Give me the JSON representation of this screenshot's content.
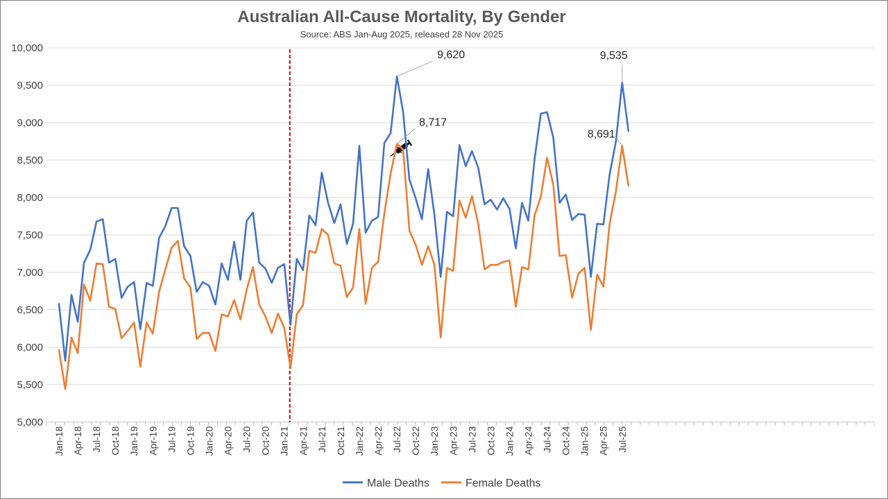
{
  "chart_data": {
    "type": "line",
    "title": "Australian All-Cause Mortality, By Gender",
    "subtitle": "Source: ABS Jan-Aug 2025, released 28 Nov 2025",
    "xlabel": "",
    "ylabel": "",
    "ylim": [
      5000,
      10000
    ],
    "ytick_values": [
      5000,
      5500,
      6000,
      6500,
      7000,
      7500,
      8000,
      8500,
      9000,
      9500,
      10000
    ],
    "ytick_labels": [
      "5,000",
      "5,500",
      "6,000",
      "6,500",
      "7,000",
      "7,500",
      "8,000",
      "8,500",
      "9,000",
      "9,500",
      "10,000"
    ],
    "grid": true,
    "legend_position": "bottom",
    "x_tick_labels": [
      {
        "index": 0,
        "label": "Jan-18"
      },
      {
        "index": 3,
        "label": "Apr-18"
      },
      {
        "index": 6,
        "label": "Jul-18"
      },
      {
        "index": 9,
        "label": "Oct-18"
      },
      {
        "index": 12,
        "label": "Jan-19"
      },
      {
        "index": 15,
        "label": "Apr-19"
      },
      {
        "index": 18,
        "label": "Jul-19"
      },
      {
        "index": 21,
        "label": "Oct-19"
      },
      {
        "index": 24,
        "label": "Jan-20"
      },
      {
        "index": 27,
        "label": "Apr-20"
      },
      {
        "index": 30,
        "label": "Jul-20"
      },
      {
        "index": 33,
        "label": "Oct-20"
      },
      {
        "index": 36,
        "label": "Jan-21"
      },
      {
        "index": 39,
        "label": "Apr-21"
      },
      {
        "index": 42,
        "label": "Jul-21"
      },
      {
        "index": 45,
        "label": "Oct-21"
      },
      {
        "index": 48,
        "label": "Jan-22"
      },
      {
        "index": 51,
        "label": "Apr-22"
      },
      {
        "index": 54,
        "label": "Jul-22"
      },
      {
        "index": 57,
        "label": "Oct-22"
      },
      {
        "index": 60,
        "label": "Jan-23"
      },
      {
        "index": 63,
        "label": "Apr-23"
      },
      {
        "index": 66,
        "label": "Jul-23"
      },
      {
        "index": 69,
        "label": "Oct-23"
      },
      {
        "index": 72,
        "label": "Jan-24"
      },
      {
        "index": 75,
        "label": "Apr-24"
      },
      {
        "index": 78,
        "label": "Jul-24"
      },
      {
        "index": 81,
        "label": "Oct-24"
      },
      {
        "index": 84,
        "label": "Jan-25"
      },
      {
        "index": 87,
        "label": "Apr-25"
      },
      {
        "index": 90,
        "label": "Jul-25"
      }
    ],
    "series": [
      {
        "name": "Male Deaths",
        "color": "#4472C4",
        "values": [
          6580,
          5820,
          6700,
          6340,
          7130,
          7300,
          7680,
          7710,
          7130,
          7180,
          6660,
          6810,
          6870,
          6240,
          6860,
          6820,
          7460,
          7620,
          7860,
          7860,
          7350,
          7220,
          6740,
          6870,
          6820,
          6570,
          7120,
          6900,
          7410,
          6900,
          7690,
          7800,
          7130,
          7050,
          6860,
          7060,
          7110,
          6300,
          7180,
          7030,
          7760,
          7630,
          8330,
          7930,
          7660,
          7910,
          7380,
          7650,
          8690,
          7530,
          7690,
          7740,
          8730,
          8860,
          9620,
          9140,
          8240,
          7990,
          7710,
          8380,
          7770,
          6940,
          7810,
          7750,
          8700,
          8420,
          8620,
          8400,
          7910,
          7970,
          7840,
          7990,
          7850,
          7320,
          7930,
          7690,
          8510,
          9120,
          9140,
          8800,
          7930,
          8040,
          7700,
          7780,
          7770,
          6940,
          7650,
          7640,
          8310,
          8750,
          9535,
          8890
        ]
      },
      {
        "name": "Female Deaths",
        "color": "#ED7D31",
        "values": [
          5960,
          5440,
          6130,
          5920,
          6840,
          6620,
          7120,
          7110,
          6540,
          6510,
          6120,
          6220,
          6330,
          5740,
          6330,
          6180,
          6740,
          7040,
          7330,
          7420,
          6920,
          6800,
          6110,
          6190,
          6190,
          5950,
          6440,
          6410,
          6630,
          6370,
          6770,
          7070,
          6570,
          6410,
          6190,
          6450,
          6260,
          5720,
          6440,
          6560,
          7290,
          7260,
          7580,
          7500,
          7120,
          7090,
          6670,
          6800,
          7580,
          6580,
          7060,
          7140,
          7790,
          8320,
          8717,
          8640,
          7560,
          7370,
          7100,
          7350,
          7100,
          6130,
          7060,
          7020,
          7960,
          7730,
          8020,
          7650,
          7040,
          7100,
          7100,
          7140,
          7160,
          6540,
          7070,
          7040,
          7760,
          8010,
          8530,
          8170,
          7220,
          7230,
          6660,
          6980,
          7060,
          6230,
          6970,
          6810,
          7650,
          8080,
          8691,
          8160
        ]
      }
    ],
    "annotations": [
      {
        "series": 0,
        "index": 54,
        "label": "9,620"
      },
      {
        "series": 1,
        "index": 54,
        "label": "8,717"
      },
      {
        "series": 0,
        "index": 90,
        "label": "9,535"
      },
      {
        "series": 1,
        "index": 90,
        "label": "8,691"
      }
    ],
    "vertical_marker": {
      "index": 37,
      "color": "#C00000",
      "icon": "syringe-icon"
    }
  }
}
